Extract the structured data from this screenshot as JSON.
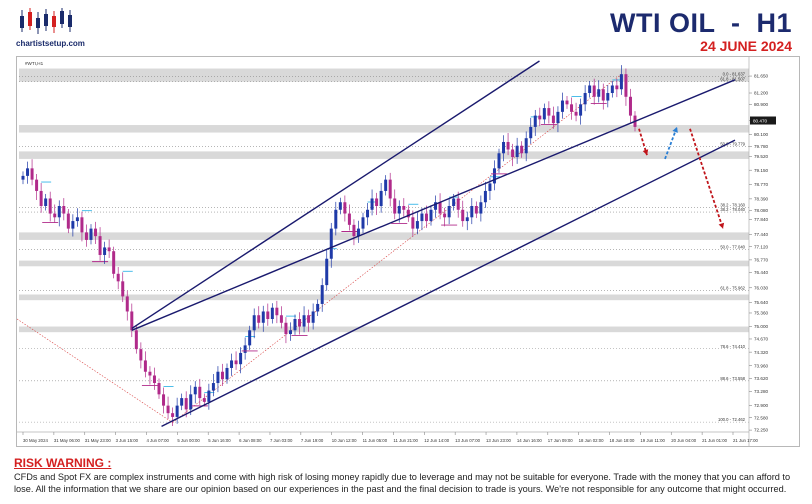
{
  "logo": {
    "text": "chartistsetup.com",
    "icon": "bar-chart-logo-icon"
  },
  "header": {
    "title": "WTI OIL  -  H1",
    "date": "24 JUNE 2024",
    "title_color": "#1c2a6e",
    "date_color": "#d42020"
  },
  "chart_data": {
    "type": "candlestick",
    "symbol_label": "#WTI,H1",
    "ylim": [
      72.2,
      82.05
    ],
    "price_ticks": [
      "81.650",
      "81.200",
      "80.900",
      "80.470",
      "80.100",
      "79.780",
      "79.520",
      "79.150",
      "78.770",
      "78.390",
      "78.080",
      "77.840",
      "77.440",
      "77.120",
      "76.770",
      "76.440",
      "76.030",
      "75.640",
      "75.360",
      "75.000",
      "74.670",
      "74.320",
      "73.960",
      "73.620",
      "73.280",
      "72.900",
      "72.580",
      "72.250"
    ],
    "current_price": "80.470",
    "x_ticks": [
      "30 May 2024",
      "31 May 06:00",
      "31 May 23:00",
      "3 Jun 15:00",
      "4 Jun 07:00",
      "5 Jun 00:00",
      "5 Jun 16:00",
      "6 Jun 08:00",
      "7 Jun 03:00",
      "7 Jun 19:00",
      "10 Jun 12:00",
      "11 Jun 05:00",
      "11 Jun 21:00",
      "12 Jun 14:00",
      "13 Jun 07:00",
      "13 Jun 23:00",
      "14 Jun 16:00",
      "17 Jun 09:00",
      "18 Jun 02:00",
      "18 Jun 18:00",
      "19 Jun 11:00",
      "20 Jun 04:00",
      "21 Jun 01:00",
      "21 Jun 17:00"
    ],
    "fib_labels": [
      "0.0 - 81.637",
      "61.8 - 81.507",
      "50.0 - 79.779",
      "38.2 - 78.160",
      "38.2 - 78.040",
      "50.0 - 77.040",
      "61.8 - 75.962",
      "78.6 - 74.410",
      "88.6 - 73.558",
      "100.0 - 72.462"
    ],
    "zones": [
      [
        81.5,
        81.85
      ],
      [
        80.15,
        80.35
      ],
      [
        79.45,
        79.65
      ],
      [
        77.3,
        77.5
      ],
      [
        76.6,
        76.75
      ],
      [
        75.7,
        75.85
      ],
      [
        74.85,
        75.0
      ]
    ],
    "closes": [
      79.0,
      79.2,
      78.9,
      78.6,
      78.2,
      78.4,
      78.0,
      77.9,
      78.2,
      78.0,
      77.6,
      77.8,
      77.9,
      77.5,
      77.3,
      77.6,
      77.4,
      76.9,
      77.1,
      77.0,
      76.4,
      76.2,
      75.8,
      75.4,
      74.9,
      74.4,
      74.1,
      73.8,
      73.7,
      73.5,
      73.2,
      72.9,
      72.7,
      72.6,
      72.9,
      73.1,
      72.8,
      73.2,
      73.4,
      73.1,
      73.0,
      73.3,
      73.5,
      73.8,
      73.6,
      73.9,
      74.1,
      74.0,
      74.3,
      74.5,
      74.9,
      75.3,
      75.1,
      75.4,
      75.2,
      75.5,
      75.3,
      75.1,
      74.8,
      74.9,
      75.2,
      75.0,
      75.3,
      75.1,
      75.4,
      75.6,
      76.1,
      76.8,
      77.6,
      78.1,
      78.3,
      78.0,
      77.7,
      77.4,
      77.6,
      77.9,
      78.1,
      78.4,
      78.2,
      78.6,
      78.9,
      78.4,
      78.0,
      78.2,
      78.1,
      77.9,
      77.6,
      77.8,
      78.0,
      77.8,
      78.1,
      78.3,
      78.0,
      77.9,
      78.2,
      78.4,
      78.1,
      77.8,
      77.9,
      78.2,
      78.0,
      78.3,
      78.6,
      78.8,
      79.2,
      79.6,
      79.9,
      79.7,
      79.5,
      79.8,
      79.6,
      80.0,
      80.3,
      80.6,
      80.5,
      80.8,
      80.6,
      80.4,
      80.7,
      81.0,
      80.9,
      80.7,
      80.6,
      80.9,
      81.2,
      81.4,
      81.1,
      81.3,
      81.0,
      81.2,
      81.4,
      81.3,
      81.7,
      81.1,
      80.6,
      80.3
    ],
    "channel_color": "#1a1a6e",
    "arrows": [
      {
        "color": "#c0141a",
        "direction": "down"
      },
      {
        "color": "#2a7fd4",
        "direction": "up"
      },
      {
        "color": "#c0141a",
        "direction": "down"
      }
    ]
  },
  "risk": {
    "title": "RISK WARNING :",
    "text": "CFDs and Spot FX are complex instruments and come with high risk of losing money rapidly due to leverage and may not be suitable for everyone. Trade with the money that you can afford to lose. All the information that we share are our opinion based on our experiences in the past and the final decision to trade is yours. We're not responsible for any outcome that might occurred."
  }
}
